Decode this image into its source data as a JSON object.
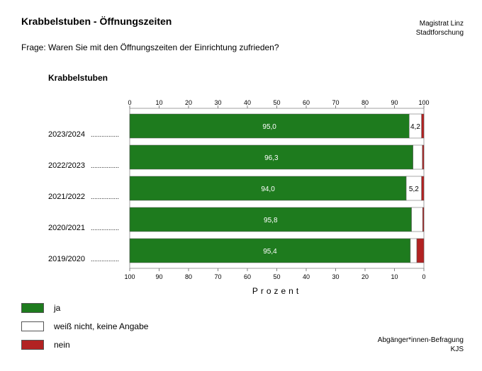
{
  "header": {
    "title": "Krabbelstuben - Öffnungszeiten",
    "publisher_line1": "Magistrat Linz",
    "publisher_line2": "Stadtforschung",
    "question": "Frage: Waren Sie mit den Öffnungszeiten der Einrichtung zufrieden?"
  },
  "footer": {
    "source_line1": "Abgänger*innen-Befragung",
    "source_line2": "KJS"
  },
  "colors": {
    "ja": "#1e7b1e",
    "weiss_nicht": "#ffffff",
    "nein": "#b22222"
  },
  "chart_data": {
    "type": "bar",
    "orientation": "horizontal",
    "stacked": true,
    "title": "Krabbelstuben",
    "xlabel": "Prozent",
    "xlim": [
      0,
      100
    ],
    "ticks_top": [
      "0",
      "10",
      "20",
      "30",
      "40",
      "50",
      "60",
      "70",
      "80",
      "90",
      "100"
    ],
    "ticks_bottom": [
      "100",
      "90",
      "80",
      "70",
      "60",
      "50",
      "40",
      "30",
      "20",
      "10",
      "0"
    ],
    "categories": [
      "2023/2024",
      "2022/2023",
      "2021/2022",
      "2020/2021",
      "2019/2020"
    ],
    "leader_dots": "................",
    "series": [
      {
        "name": "ja",
        "color": "#1e7b1e",
        "values": [
          95.0,
          96.3,
          94.0,
          95.8,
          95.4
        ],
        "labels": [
          "95,0",
          "96,3",
          "94,0",
          "95,8",
          "95,4"
        ]
      },
      {
        "name": "weiß nicht, keine Angabe",
        "color": "#ffffff",
        "values": [
          4.2,
          3.2,
          5.2,
          3.8,
          2.2
        ],
        "labels": [
          "4,2",
          "",
          "5,2",
          "",
          ""
        ]
      },
      {
        "name": "nein",
        "color": "#b22222",
        "values": [
          0.8,
          0.5,
          0.8,
          0.4,
          2.4
        ],
        "labels": [
          "",
          "",
          "",
          "",
          ""
        ]
      }
    ],
    "legend": {
      "placement": "bottom-left"
    }
  }
}
